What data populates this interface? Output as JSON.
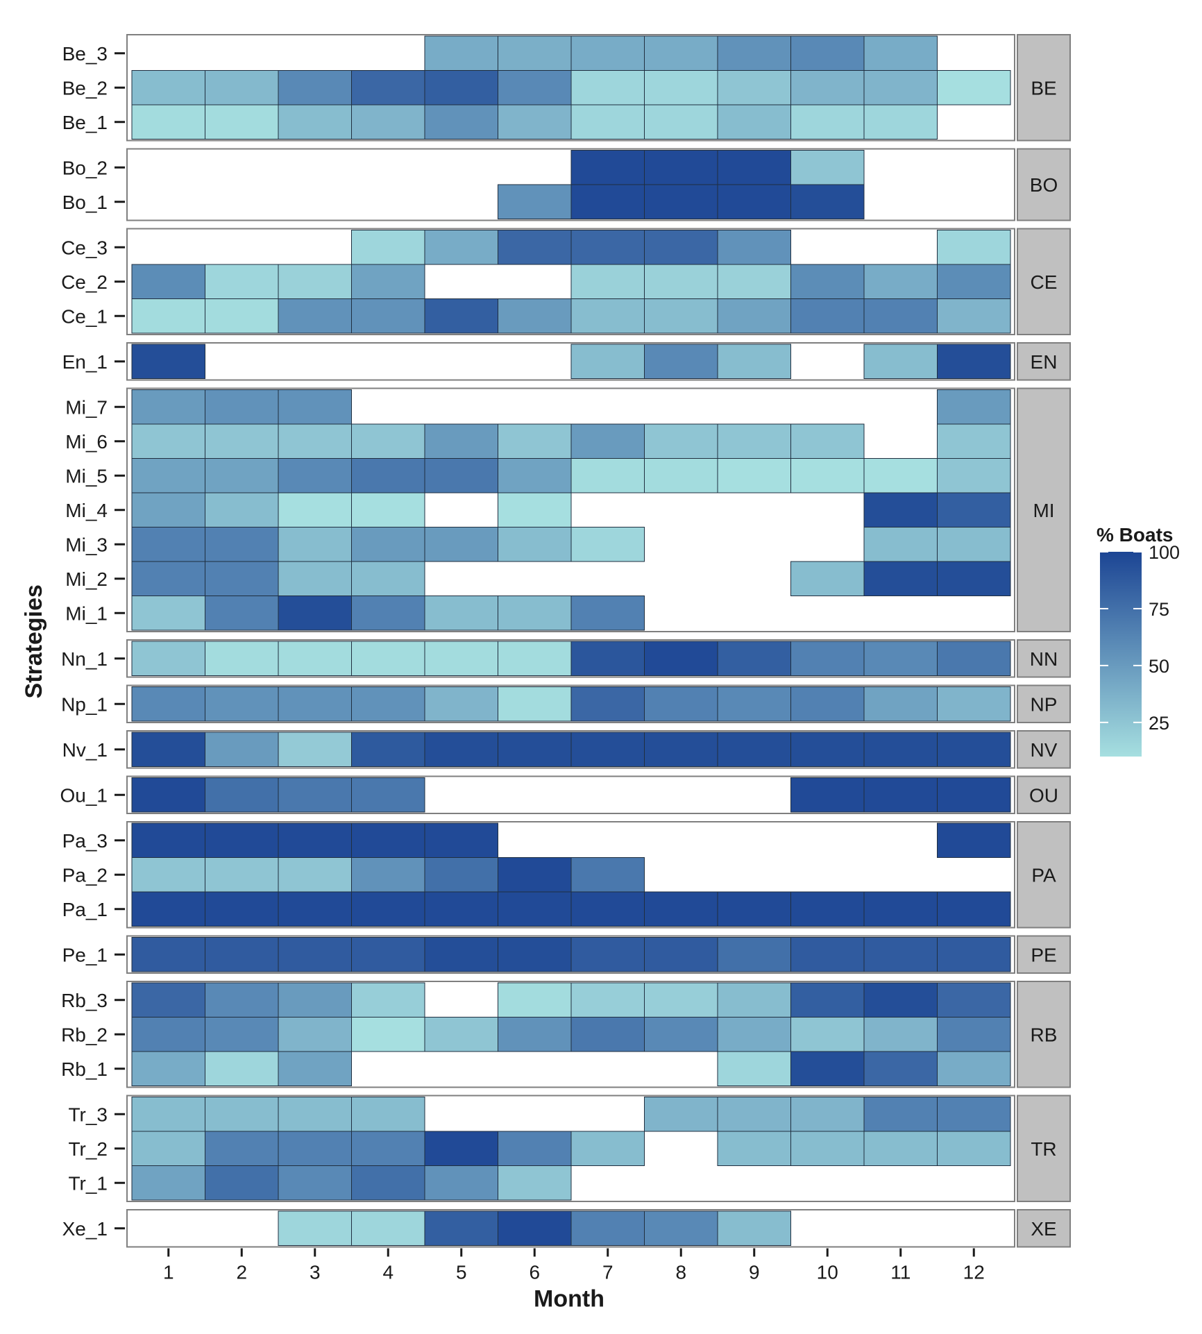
{
  "chart_data": {
    "type": "heatmap",
    "xlabel": "Month",
    "ylabel": "Strategies",
    "x_categories": [
      1,
      2,
      3,
      4,
      5,
      6,
      7,
      8,
      9,
      10,
      11,
      12
    ],
    "value_range": [
      10,
      100
    ],
    "color_low": "#a6dfe0",
    "color_high": "#1c4594",
    "legend": {
      "title": "% Boats",
      "ticks": [
        25,
        50,
        75,
        100
      ],
      "placement": "right"
    },
    "panels": [
      {
        "label": "BE",
        "rows": [
          {
            "name": "Be_3",
            "values": [
              null,
              null,
              null,
              null,
              40,
              38,
              40,
              40,
              55,
              60,
              40,
              null
            ]
          },
          {
            "name": "Be_2",
            "values": [
              30,
              32,
              60,
              80,
              85,
              60,
              15,
              15,
              25,
              35,
              35,
              10
            ]
          },
          {
            "name": "Be_1",
            "values": [
              12,
              12,
              30,
              35,
              55,
              35,
              15,
              15,
              30,
              15,
              15,
              null
            ]
          }
        ]
      },
      {
        "label": "BO",
        "rows": [
          {
            "name": "Bo_2",
            "values": [
              null,
              null,
              null,
              null,
              null,
              null,
              97,
              97,
              97,
              25,
              null,
              null
            ]
          },
          {
            "name": "Bo_1",
            "values": [
              null,
              null,
              null,
              null,
              null,
              55,
              97,
              97,
              97,
              95,
              null,
              null
            ]
          }
        ]
      },
      {
        "label": "CE",
        "rows": [
          {
            "name": "Ce_3",
            "values": [
              null,
              null,
              null,
              15,
              40,
              80,
              80,
              80,
              55,
              null,
              null,
              15
            ]
          },
          {
            "name": "Ce_2",
            "values": [
              58,
              15,
              18,
              45,
              null,
              null,
              18,
              18,
              18,
              58,
              40,
              58
            ]
          },
          {
            "name": "Ce_1",
            "values": [
              12,
              12,
              55,
              55,
              85,
              50,
              30,
              30,
              45,
              65,
              65,
              35
            ]
          }
        ]
      },
      {
        "label": "EN",
        "rows": [
          {
            "name": "En_1",
            "values": [
              95,
              null,
              null,
              null,
              null,
              null,
              30,
              60,
              30,
              null,
              30,
              95
            ]
          }
        ]
      },
      {
        "label": "MI",
        "rows": [
          {
            "name": "Mi_7",
            "values": [
              50,
              55,
              55,
              null,
              null,
              null,
              null,
              null,
              null,
              null,
              null,
              50
            ]
          },
          {
            "name": "Mi_6",
            "values": [
              25,
              25,
              25,
              25,
              50,
              25,
              50,
              25,
              25,
              25,
              null,
              25
            ]
          },
          {
            "name": "Mi_5",
            "values": [
              45,
              45,
              60,
              70,
              70,
              45,
              12,
              12,
              10,
              10,
              10,
              25
            ]
          },
          {
            "name": "Mi_4",
            "values": [
              45,
              30,
              10,
              10,
              null,
              10,
              null,
              null,
              null,
              null,
              95,
              85
            ]
          },
          {
            "name": "Mi_3",
            "values": [
              65,
              65,
              30,
              50,
              50,
              30,
              15,
              null,
              null,
              null,
              30,
              30
            ]
          },
          {
            "name": "Mi_2",
            "values": [
              65,
              65,
              30,
              30,
              null,
              null,
              null,
              null,
              null,
              30,
              95,
              95
            ]
          },
          {
            "name": "Mi_1",
            "values": [
              25,
              65,
              95,
              65,
              30,
              30,
              65,
              null,
              null,
              null,
              null,
              null
            ]
          }
        ]
      },
      {
        "label": "NN",
        "rows": [
          {
            "name": "Nn_1",
            "values": [
              25,
              12,
              12,
              12,
              12,
              12,
              90,
              97,
              85,
              65,
              60,
              70
            ]
          }
        ]
      },
      {
        "label": "NP",
        "rows": [
          {
            "name": "Np_1",
            "values": [
              60,
              55,
              55,
              55,
              35,
              12,
              80,
              65,
              60,
              65,
              45,
              35
            ]
          }
        ]
      },
      {
        "label": "NV",
        "rows": [
          {
            "name": "Nv_1",
            "values": [
              95,
              50,
              22,
              88,
              95,
              95,
              95,
              95,
              95,
              95,
              95,
              95
            ]
          }
        ]
      },
      {
        "label": "OU",
        "rows": [
          {
            "name": "Ou_1",
            "values": [
              97,
              75,
              70,
              70,
              null,
              null,
              null,
              null,
              null,
              97,
              97,
              97
            ]
          }
        ]
      },
      {
        "label": "PA",
        "rows": [
          {
            "name": "Pa_3",
            "values": [
              97,
              97,
              97,
              97,
              97,
              null,
              null,
              null,
              null,
              null,
              null,
              97
            ]
          },
          {
            "name": "Pa_2",
            "values": [
              25,
              25,
              25,
              55,
              75,
              97,
              70,
              null,
              null,
              null,
              null,
              null
            ]
          },
          {
            "name": "Pa_1",
            "values": [
              97,
              97,
              97,
              97,
              97,
              97,
              97,
              97,
              97,
              97,
              97,
              97
            ]
          }
        ]
      },
      {
        "label": "PE",
        "rows": [
          {
            "name": "Pe_1",
            "values": [
              87,
              87,
              87,
              87,
              95,
              95,
              87,
              87,
              75,
              87,
              87,
              87
            ]
          }
        ]
      },
      {
        "label": "RB",
        "rows": [
          {
            "name": "Rb_3",
            "values": [
              80,
              60,
              50,
              20,
              null,
              12,
              20,
              20,
              30,
              85,
              95,
              80
            ]
          },
          {
            "name": "Rb_2",
            "values": [
              65,
              60,
              35,
              10,
              25,
              55,
              70,
              60,
              40,
              25,
              35,
              65
            ]
          },
          {
            "name": "Rb_1",
            "values": [
              40,
              15,
              45,
              null,
              null,
              null,
              null,
              null,
              15,
              95,
              80,
              40
            ]
          }
        ]
      },
      {
        "label": "TR",
        "rows": [
          {
            "name": "Tr_3",
            "values": [
              30,
              30,
              30,
              30,
              null,
              null,
              null,
              35,
              35,
              35,
              65,
              65
            ]
          },
          {
            "name": "Tr_2",
            "values": [
              30,
              65,
              65,
              65,
              97,
              65,
              30,
              null,
              30,
              30,
              30,
              30
            ]
          },
          {
            "name": "Tr_1",
            "values": [
              45,
              75,
              60,
              75,
              55,
              25,
              null,
              null,
              null,
              null,
              null,
              null
            ]
          }
        ]
      },
      {
        "label": "XE",
        "rows": [
          {
            "name": "Xe_1",
            "values": [
              null,
              null,
              15,
              15,
              85,
              97,
              65,
              60,
              30,
              null,
              null,
              null
            ]
          }
        ]
      }
    ]
  }
}
